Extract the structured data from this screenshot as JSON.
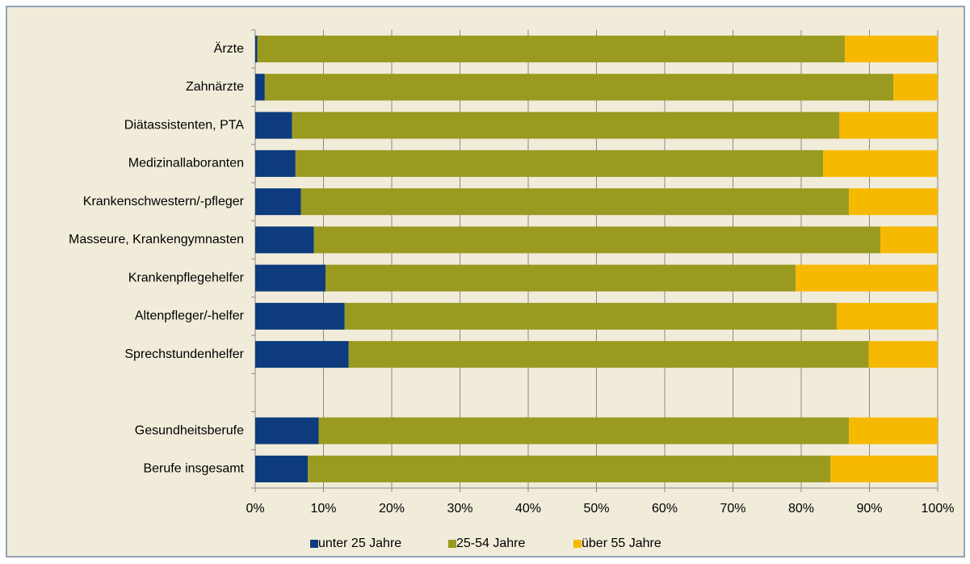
{
  "chart_data": {
    "type": "stacked_barh",
    "categories": [
      "Ärzte",
      "Zahnärzte",
      "Diätassistenten, PTA",
      "Medizinallaboranten",
      "Krankenschwestern/-pfleger",
      "Masseure, Krankengymnasten",
      "Krankenpflegehelfer",
      "Altenpfleger/-helfer",
      "Sprechstundenhelfer",
      null,
      "Gesundheitsberufe",
      "Berufe insgesamt"
    ],
    "series": [
      {
        "name": "unter 25 Jahre",
        "color": "#0d3b7d",
        "values": [
          0.3,
          1.4,
          5.4,
          5.9,
          6.7,
          8.6,
          10.3,
          13.1,
          13.7,
          null,
          9.3,
          7.7
        ]
      },
      {
        "name": "25-54 Jahre",
        "color": "#9a9a21",
        "values": [
          86.1,
          92.1,
          80.2,
          77.3,
          80.3,
          83.0,
          68.9,
          72.1,
          76.2,
          null,
          77.7,
          76.6
        ]
      },
      {
        "name": "über 55 Jahre",
        "color": "#f7b900",
        "values": [
          13.6,
          6.5,
          14.4,
          16.8,
          13.0,
          8.4,
          20.8,
          14.8,
          10.1,
          null,
          13.0,
          15.7
        ]
      }
    ],
    "xlim": [
      0,
      100
    ],
    "xticks": [
      {
        "value": 0,
        "label": "0%"
      },
      {
        "value": 10,
        "label": "10%"
      },
      {
        "value": 20,
        "label": "20%"
      },
      {
        "value": 30,
        "label": "30%"
      },
      {
        "value": 40,
        "label": "40%"
      },
      {
        "value": 50,
        "label": "50%"
      },
      {
        "value": 60,
        "label": "60%"
      },
      {
        "value": 70,
        "label": "70%"
      },
      {
        "value": 80,
        "label": "80%"
      },
      {
        "value": 90,
        "label": "90%"
      },
      {
        "value": 100,
        "label": "100%"
      }
    ],
    "grid": true,
    "legend": "bottom"
  }
}
